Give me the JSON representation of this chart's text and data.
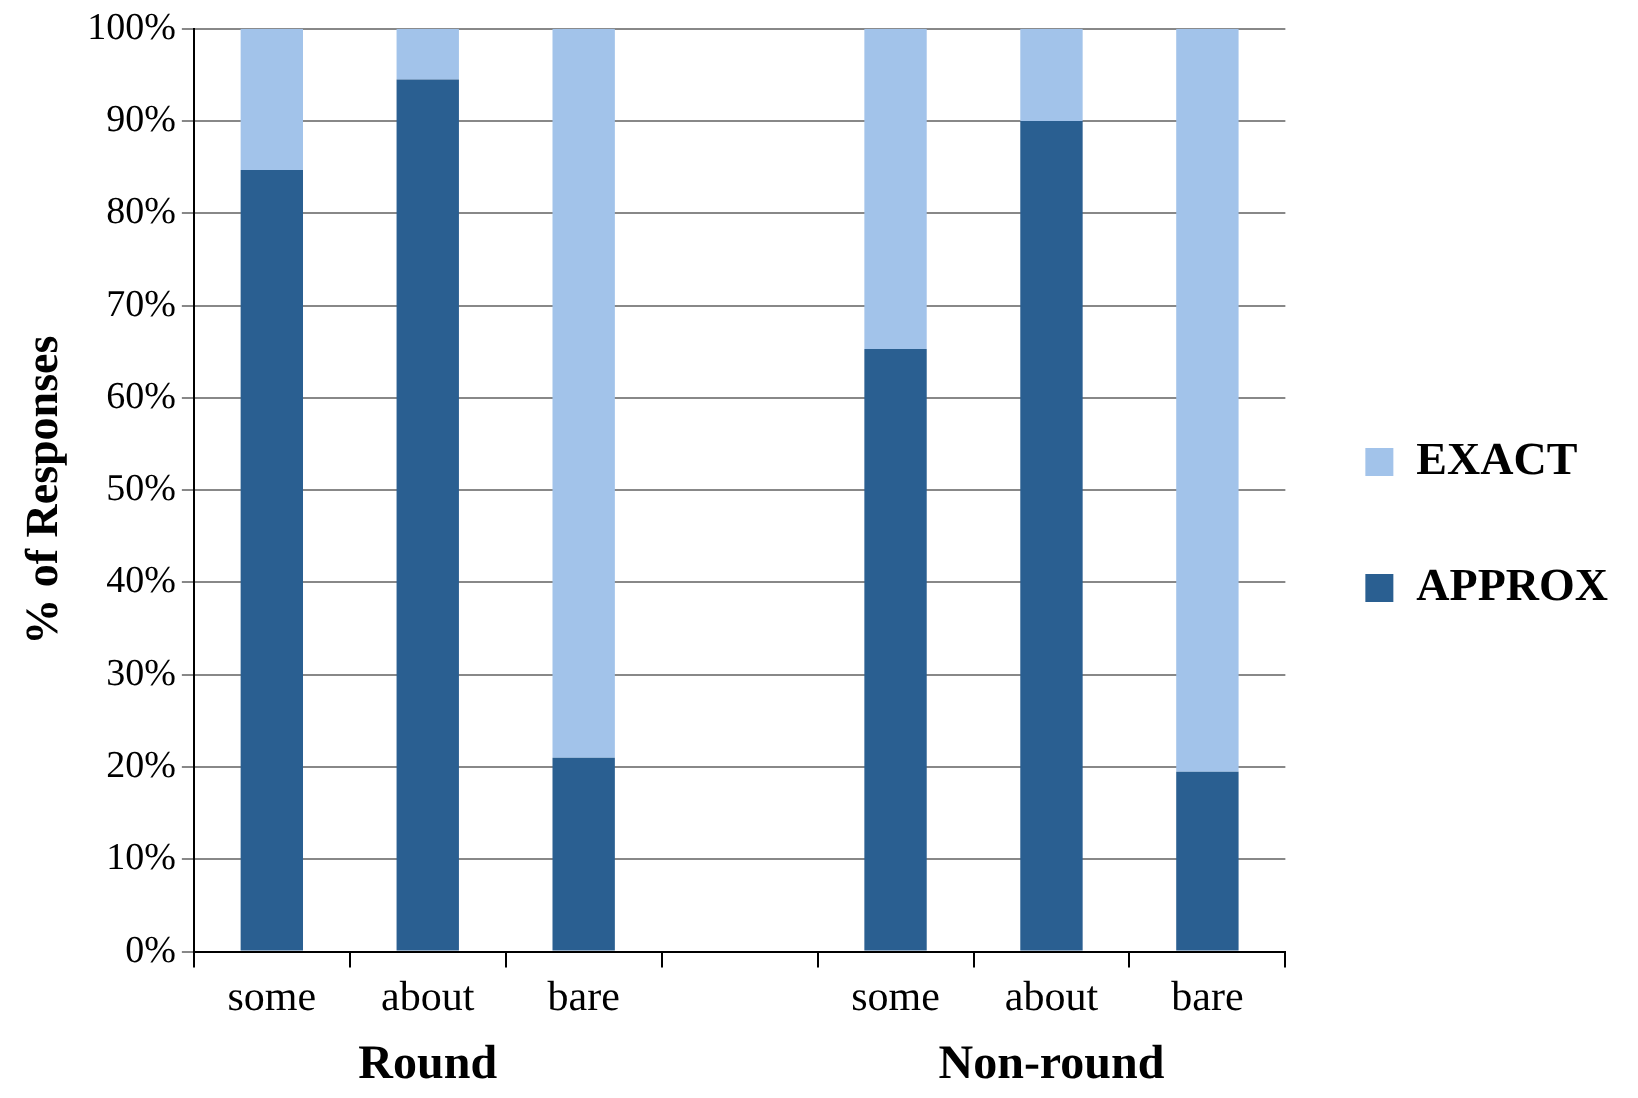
{
  "chart_data": {
    "type": "bar",
    "stacked": true,
    "ylabel": "% of Responses",
    "categories": [
      "some",
      "about",
      "bare",
      null,
      "some",
      "about",
      "bare"
    ],
    "series": [
      {
        "name": "APPROX",
        "color": "#2a5f91",
        "values": [
          84.7,
          94.5,
          21,
          null,
          65.3,
          90,
          19.5
        ]
      },
      {
        "name": "EXACT",
        "color": "#a2c3ea",
        "values": [
          15.3,
          5.5,
          79,
          null,
          34.7,
          10,
          80.5
        ]
      }
    ],
    "ylim": [
      0,
      100
    ],
    "yticks": [
      {
        "value": 0,
        "label": "0%"
      },
      {
        "value": 10,
        "label": "10%"
      },
      {
        "value": 20,
        "label": "20%"
      },
      {
        "value": 30,
        "label": "30%"
      },
      {
        "value": 40,
        "label": "40%"
      },
      {
        "value": 50,
        "label": "50%"
      },
      {
        "value": 60,
        "label": "60%"
      },
      {
        "value": 70,
        "label": "70%"
      },
      {
        "value": 80,
        "label": "80%"
      },
      {
        "value": 90,
        "label": "90%"
      },
      {
        "value": 100,
        "label": "100%"
      }
    ],
    "grid": "y",
    "legend": "right",
    "annotations": [
      "Round",
      "Non-round"
    ]
  }
}
